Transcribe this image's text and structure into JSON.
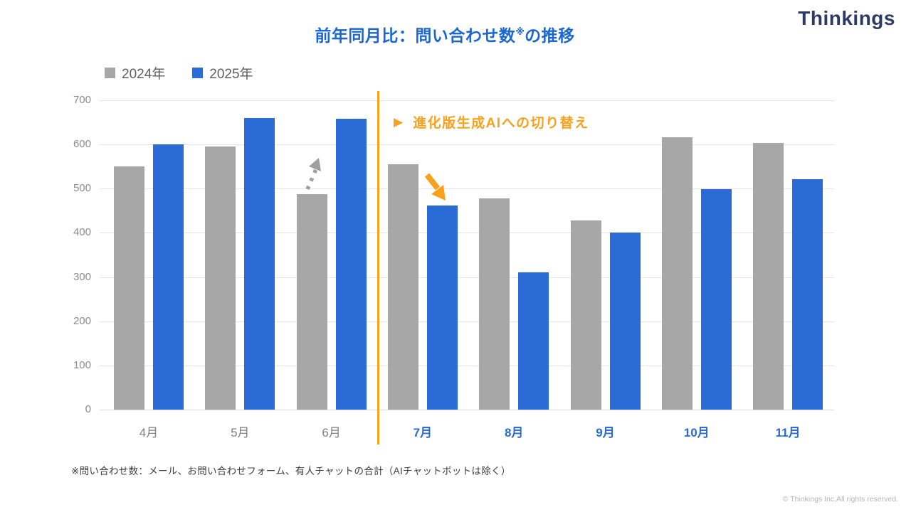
{
  "header": {
    "logo": "Thinkings",
    "title_main": "前年同月比：問い合わせ数",
    "title_sup": "※",
    "title_tail": "の推移"
  },
  "legend": [
    {
      "label": "2024年",
      "color": "#a7a7a7"
    },
    {
      "label": "2025年",
      "color": "#2b6bd6"
    }
  ],
  "chart_data": {
    "type": "bar",
    "categories": [
      "4月",
      "5月",
      "6月",
      "7月",
      "8月",
      "9月",
      "10月",
      "11月"
    ],
    "series": [
      {
        "name": "2024年",
        "color": "#a7a7a7",
        "values": [
          550,
          595,
          487,
          555,
          478,
          428,
          616,
          603
        ]
      },
      {
        "name": "2025年",
        "color": "#2b6bd6",
        "values": [
          600,
          660,
          658,
          462,
          310,
          400,
          499,
          521
        ]
      }
    ],
    "ylim": [
      0,
      700
    ],
    "ytick_step": 100,
    "grid": true,
    "legend_position": "top-left",
    "highlighted_categories": [
      "7月",
      "8月",
      "9月",
      "10月",
      "11月"
    ],
    "annotation": {
      "marker": "▶",
      "label": "進化版生成AIへの切り替え",
      "color": "#f9a11c",
      "divider_after_category": "6月"
    }
  },
  "colors": {
    "accent_blue": "#2b6bd6",
    "title_blue": "#1b66d1",
    "bar_gray": "#a7a7a7",
    "annotation_orange": "#f9a11c",
    "logo_navy": "#2b3a66"
  },
  "footnote": "※問い合わせ数：メール、お問い合わせフォーム、有人チャットの合計（AIチャットボットは除く）",
  "copyright": "© Thinkings Inc.All rights reserved."
}
